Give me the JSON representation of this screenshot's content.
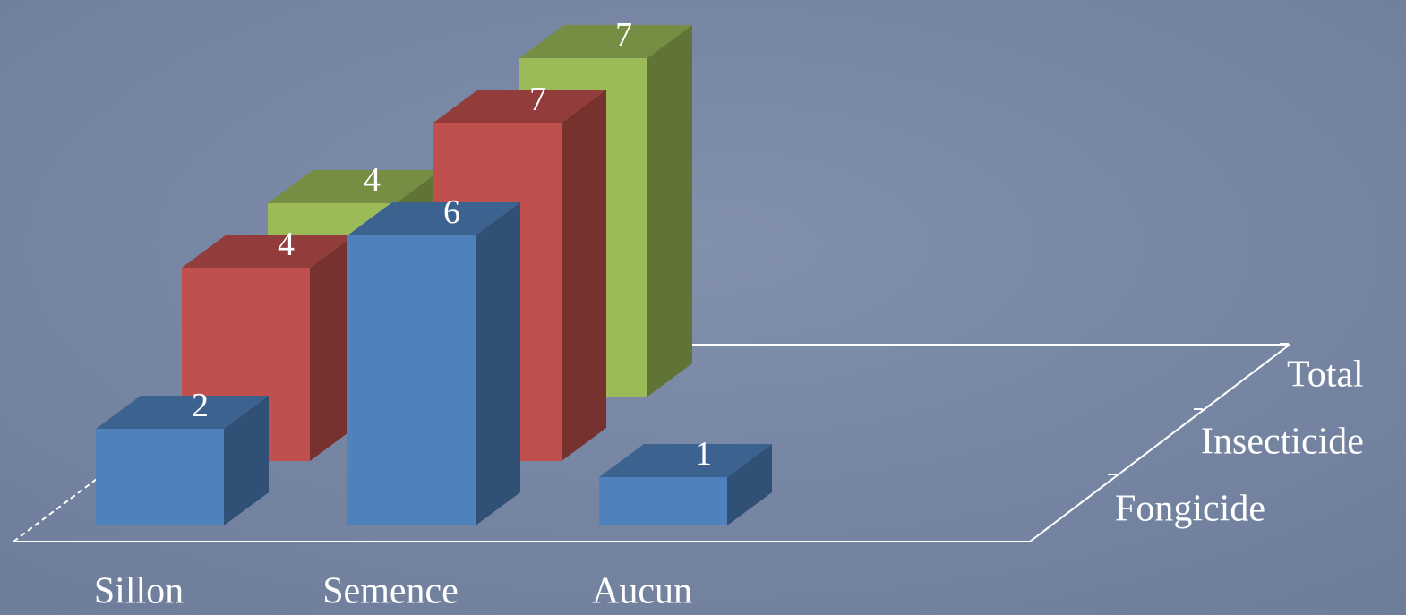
{
  "chart_data": {
    "type": "bar3d",
    "categories": [
      "Sillon",
      "Semence",
      "Aucun"
    ],
    "series": [
      {
        "name": "Fongicide",
        "color": "#4f81bd",
        "values": [
          2,
          6,
          1
        ]
      },
      {
        "name": "Insecticide",
        "color": "#c0504d",
        "values": [
          4,
          7,
          null
        ]
      },
      {
        "name": "Total",
        "color": "#9bbb59",
        "values": [
          4,
          7,
          null
        ]
      }
    ]
  }
}
